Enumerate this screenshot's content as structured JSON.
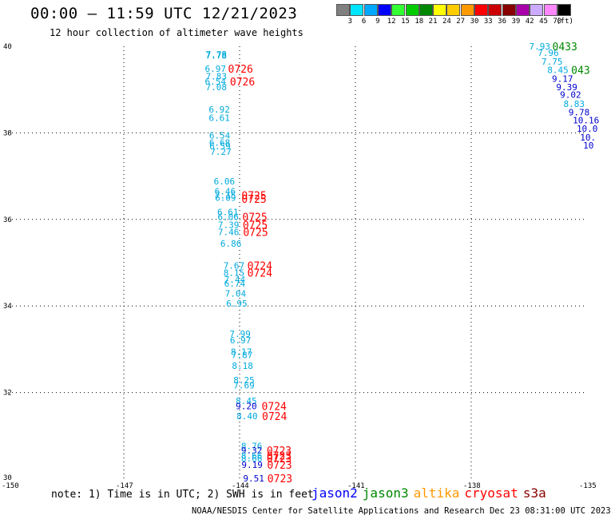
{
  "header": {
    "title": "00:00 – 11:59 UTC 12/21/2023",
    "subtitle": "12 hour collection of altimeter wave heights"
  },
  "colorbar": {
    "unit": "(ft)",
    "bins": [
      {
        "label": "3",
        "color": "#808080"
      },
      {
        "label": "6",
        "color": "#00e5ff"
      },
      {
        "label": "9",
        "color": "#00a8ff"
      },
      {
        "label": "12",
        "color": "#0000ff"
      },
      {
        "label": "15",
        "color": "#33ff33"
      },
      {
        "label": "18",
        "color": "#00cc00"
      },
      {
        "label": "21",
        "color": "#008800"
      },
      {
        "label": "24",
        "color": "#ffff00"
      },
      {
        "label": "27",
        "color": "#ffcc00"
      },
      {
        "label": "30",
        "color": "#ff9900"
      },
      {
        "label": "33",
        "color": "#ff0000"
      },
      {
        "label": "36",
        "color": "#cc0000"
      },
      {
        "label": "39",
        "color": "#880000"
      },
      {
        "label": "42",
        "color": "#aa00aa"
      },
      {
        "label": "45",
        "color": "#ccaaff"
      },
      {
        "label": "70",
        "color": "#ff88ff"
      },
      {
        "label": "",
        "color": "#000000"
      }
    ]
  },
  "map": {
    "lon_range": [
      -150,
      -135
    ],
    "lat_range": [
      30,
      40
    ],
    "lon_ticks": [
      "-150",
      "-147",
      "-144",
      "-141",
      "-138",
      "-135"
    ],
    "lat_ticks": [
      "40",
      "38",
      "36",
      "34",
      "32",
      "30"
    ],
    "grid_lons": [
      -147,
      -144,
      -141,
      -138
    ],
    "grid_lats": [
      38,
      36,
      34,
      32
    ],
    "grid": true
  },
  "observations": [
    {
      "lon": -144.88,
      "lat": 39.82,
      "v": "7.78",
      "c": "#00aadd"
    },
    {
      "lon": -144.88,
      "lat": 39.79,
      "v": "7.78",
      "c": "#00aadd"
    },
    {
      "lon": -144.9,
      "lat": 39.48,
      "v": "6.97",
      "c": "#00aadd"
    },
    {
      "lon": -144.88,
      "lat": 39.31,
      "v": "7.83",
      "c": "#00aadd"
    },
    {
      "lon": -144.9,
      "lat": 39.19,
      "v": "6.54",
      "c": "#00aadd"
    },
    {
      "lon": -144.88,
      "lat": 39.06,
      "v": "7.08",
      "c": "#00aadd"
    },
    {
      "lon": -144.8,
      "lat": 38.54,
      "v": "6.92",
      "c": "#00aadd"
    },
    {
      "lon": -144.8,
      "lat": 38.35,
      "v": "6.61",
      "c": "#00aadd"
    },
    {
      "lon": -144.79,
      "lat": 37.94,
      "v": "6.54",
      "c": "#00aadd"
    },
    {
      "lon": -144.79,
      "lat": 37.78,
      "v": "6.68",
      "c": "#00aadd"
    },
    {
      "lon": -144.78,
      "lat": 37.69,
      "v": "6.59",
      "c": "#00aadd"
    },
    {
      "lon": -144.76,
      "lat": 37.56,
      "v": "7.27",
      "c": "#00aadd"
    },
    {
      "lon": -144.67,
      "lat": 36.88,
      "v": "6.06",
      "c": "#00aadd"
    },
    {
      "lon": -144.65,
      "lat": 36.65,
      "v": "6.46",
      "c": "#00aadd"
    },
    {
      "lon": -144.64,
      "lat": 36.56,
      "v": "7.15",
      "c": "#00aadd"
    },
    {
      "lon": -144.64,
      "lat": 36.5,
      "v": "6.09",
      "c": "#00aadd"
    },
    {
      "lon": -144.58,
      "lat": 36.17,
      "v": "6.61",
      "c": "#00aadd"
    },
    {
      "lon": -144.57,
      "lat": 36.06,
      "v": "6.06",
      "c": "#00aadd"
    },
    {
      "lon": -144.56,
      "lat": 35.88,
      "v": "7.39",
      "c": "#00aadd"
    },
    {
      "lon": -144.56,
      "lat": 35.71,
      "v": "7.46",
      "c": "#00aadd"
    },
    {
      "lon": -144.5,
      "lat": 35.44,
      "v": "6.86",
      "c": "#00aadd"
    },
    {
      "lon": -144.42,
      "lat": 34.94,
      "v": "7.67",
      "c": "#00aadd"
    },
    {
      "lon": -144.42,
      "lat": 34.77,
      "v": "8.15",
      "c": "#00aadd"
    },
    {
      "lon": -144.4,
      "lat": 34.61,
      "v": "7.44",
      "c": "#00aadd"
    },
    {
      "lon": -144.4,
      "lat": 34.52,
      "v": "6.74",
      "c": "#00aadd"
    },
    {
      "lon": -144.38,
      "lat": 34.29,
      "v": "7.04",
      "c": "#00aadd"
    },
    {
      "lon": -144.35,
      "lat": 34.06,
      "v": "6.95",
      "c": "#00aadd"
    },
    {
      "lon": -144.26,
      "lat": 33.36,
      "v": "7.99",
      "c": "#00aadd"
    },
    {
      "lon": -144.25,
      "lat": 33.21,
      "v": "6.97",
      "c": "#00aadd"
    },
    {
      "lon": -144.23,
      "lat": 32.94,
      "v": "8.17",
      "c": "#00aadd"
    },
    {
      "lon": -144.21,
      "lat": 32.87,
      "v": "7.87",
      "c": "#00aadd"
    },
    {
      "lon": -144.2,
      "lat": 32.62,
      "v": "8.18",
      "c": "#00aadd"
    },
    {
      "lon": -144.16,
      "lat": 32.29,
      "v": "8.25",
      "c": "#00aadd"
    },
    {
      "lon": -144.16,
      "lat": 32.17,
      "v": "7.69",
      "c": "#00aadd"
    },
    {
      "lon": -144.1,
      "lat": 31.81,
      "v": "8.45",
      "c": "#00aadd"
    },
    {
      "lon": -144.1,
      "lat": 31.69,
      "v": "9.20",
      "c": "#0000cc"
    },
    {
      "lon": -144.08,
      "lat": 31.46,
      "v": "8.40",
      "c": "#00aadd"
    },
    {
      "lon": -143.96,
      "lat": 30.77,
      "v": "8.76",
      "c": "#00aadd"
    },
    {
      "lon": -143.96,
      "lat": 30.66,
      "v": "9.32",
      "c": "#0000cc"
    },
    {
      "lon": -143.96,
      "lat": 30.54,
      "v": "8.66",
      "c": "#00aadd"
    },
    {
      "lon": -143.96,
      "lat": 30.48,
      "v": "8.66",
      "c": "#00aadd"
    },
    {
      "lon": -143.95,
      "lat": 30.33,
      "v": "9.19",
      "c": "#0000cc"
    },
    {
      "lon": -143.91,
      "lat": 30.02,
      "v": "9.51",
      "c": "#0000cc"
    },
    {
      "lon": -136.5,
      "lat": 40.0,
      "v": "7.93",
      "c": "#00aadd"
    },
    {
      "lon": -136.28,
      "lat": 39.85,
      "v": "7.96",
      "c": "#00aadd"
    },
    {
      "lon": -136.18,
      "lat": 39.65,
      "v": "7.75",
      "c": "#00aadd"
    },
    {
      "lon": -136.03,
      "lat": 39.46,
      "v": "8.45",
      "c": "#00aadd"
    },
    {
      "lon": -135.91,
      "lat": 39.25,
      "v": "9.17",
      "c": "#0000cc"
    },
    {
      "lon": -135.8,
      "lat": 39.06,
      "v": "9.39",
      "c": "#0000cc"
    },
    {
      "lon": -135.7,
      "lat": 38.88,
      "v": "9.02",
      "c": "#0000cc"
    },
    {
      "lon": -135.61,
      "lat": 38.67,
      "v": "8.83",
      "c": "#00aadd"
    },
    {
      "lon": -135.48,
      "lat": 38.48,
      "v": "9.78",
      "c": "#0000cc"
    },
    {
      "lon": -135.37,
      "lat": 38.29,
      "v": "10.16",
      "c": "#0000cc"
    },
    {
      "lon": -135.27,
      "lat": 38.1,
      "v": "10.0",
      "c": "#0000cc"
    },
    {
      "lon": -135.18,
      "lat": 37.9,
      "v": "10.",
      "c": "#0000cc"
    },
    {
      "lon": -135.1,
      "lat": 37.71,
      "v": "10",
      "c": "#0000cc"
    }
  ],
  "passes": [
    {
      "lon": -144.3,
      "lat": 39.48,
      "t": "0726",
      "c": "#ff0000"
    },
    {
      "lon": -144.25,
      "lat": 39.19,
      "t": "0726",
      "c": "#ff0000"
    },
    {
      "lon": -143.95,
      "lat": 36.56,
      "t": "0725",
      "c": "#ff0000"
    },
    {
      "lon": -143.95,
      "lat": 36.48,
      "t": "0725",
      "c": "#ff0000"
    },
    {
      "lon": -143.93,
      "lat": 36.06,
      "t": "0725",
      "c": "#ff0000"
    },
    {
      "lon": -143.92,
      "lat": 35.88,
      "t": "0725",
      "c": "#ff0000"
    },
    {
      "lon": -143.91,
      "lat": 35.71,
      "t": "0725",
      "c": "#ff0000"
    },
    {
      "lon": -143.8,
      "lat": 34.94,
      "t": "0724",
      "c": "#ff0000"
    },
    {
      "lon": -143.8,
      "lat": 34.77,
      "t": "0724",
      "c": "#ff0000"
    },
    {
      "lon": -143.43,
      "lat": 31.69,
      "t": "0724",
      "c": "#ff0000"
    },
    {
      "lon": -143.42,
      "lat": 31.46,
      "t": "0724",
      "c": "#ff0000"
    },
    {
      "lon": -143.3,
      "lat": 30.66,
      "t": "0723",
      "c": "#ff0000"
    },
    {
      "lon": -143.3,
      "lat": 30.54,
      "t": "0723",
      "c": "#ff0000"
    },
    {
      "lon": -143.3,
      "lat": 30.48,
      "t": "0723",
      "c": "#ff0000"
    },
    {
      "lon": -143.29,
      "lat": 30.33,
      "t": "0723",
      "c": "#ff0000"
    },
    {
      "lon": -143.28,
      "lat": 30.02,
      "t": "0723",
      "c": "#ff0000"
    },
    {
      "lon": -135.9,
      "lat": 40.0,
      "t": "0433",
      "c": "#008800"
    },
    {
      "lon": -135.41,
      "lat": 39.46,
      "t": "043",
      "c": "#008800"
    }
  ],
  "note": "note: 1) Time is in UTC; 2) SWH is in feet",
  "legend": [
    {
      "name": "jason2",
      "color": "#0000ff"
    },
    {
      "name": "jason3",
      "color": "#008800"
    },
    {
      "name": "altika",
      "color": "#ff9900"
    },
    {
      "name": "cryosat",
      "color": "#ff0000"
    },
    {
      "name": "s3a",
      "color": "#880000"
    }
  ],
  "footer": "NOAA/NESDIS Center for Satellite Applications and Research   Dec 23 08:31:00 UTC 2023"
}
